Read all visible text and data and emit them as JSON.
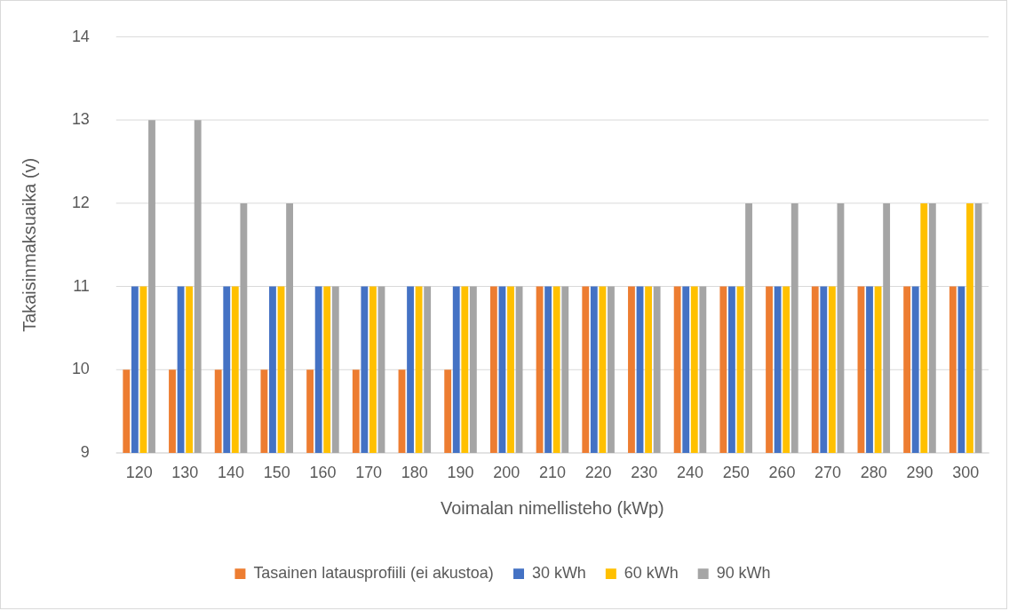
{
  "chart_data": {
    "type": "bar",
    "xlabel": "Voimalan nimellisteho (kWp)",
    "ylabel": "Takaisinmaksuaika (v)",
    "categories": [
      "120",
      "130",
      "140",
      "150",
      "160",
      "170",
      "180",
      "190",
      "200",
      "210",
      "220",
      "230",
      "240",
      "250",
      "260",
      "270",
      "280",
      "290",
      "300"
    ],
    "series": [
      {
        "name": "Tasainen latausprofiili (ei akustoa)",
        "color": "#ed7d31",
        "values": [
          10,
          10,
          10,
          10,
          10,
          10,
          10,
          10,
          11,
          11,
          11,
          11,
          11,
          11,
          11,
          11,
          11,
          11,
          11
        ]
      },
      {
        "name": "30 kWh",
        "color": "#4472c4",
        "values": [
          11,
          11,
          11,
          11,
          11,
          11,
          11,
          11,
          11,
          11,
          11,
          11,
          11,
          11,
          11,
          11,
          11,
          11,
          11
        ]
      },
      {
        "name": "60 kWh",
        "color": "#ffc000",
        "values": [
          11,
          11,
          11,
          11,
          11,
          11,
          11,
          11,
          11,
          11,
          11,
          11,
          11,
          11,
          11,
          11,
          11,
          12,
          12
        ]
      },
      {
        "name": "90 kWh",
        "color": "#a5a5a5",
        "values": [
          13,
          13,
          12,
          12,
          11,
          11,
          11,
          11,
          11,
          11,
          11,
          11,
          11,
          12,
          12,
          12,
          12,
          12,
          12
        ]
      }
    ],
    "ylim": [
      9,
      14
    ],
    "yticks": [
      9,
      10,
      11,
      12,
      13,
      14
    ],
    "grid": "y",
    "legend": "bottom"
  }
}
